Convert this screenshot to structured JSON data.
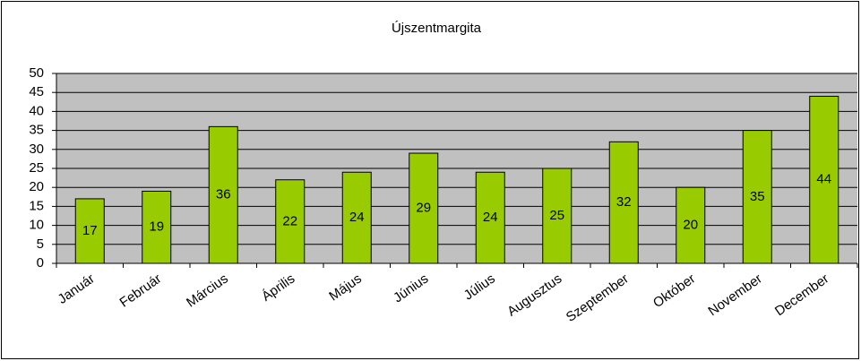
{
  "chart_data": {
    "type": "bar",
    "title": "Újszentmargita",
    "categories": [
      "Január",
      "Február",
      "Március",
      "Április",
      "Május",
      "Június",
      "Július",
      "Augusztus",
      "Szeptember",
      "Október",
      "November",
      "December"
    ],
    "values": [
      17,
      19,
      36,
      22,
      24,
      29,
      24,
      25,
      32,
      20,
      35,
      44
    ],
    "color": "#99cc00",
    "ylim": [
      0,
      50
    ],
    "yticks": [
      0,
      5,
      10,
      15,
      20,
      25,
      30,
      35,
      40,
      45,
      50
    ],
    "grid": true
  }
}
